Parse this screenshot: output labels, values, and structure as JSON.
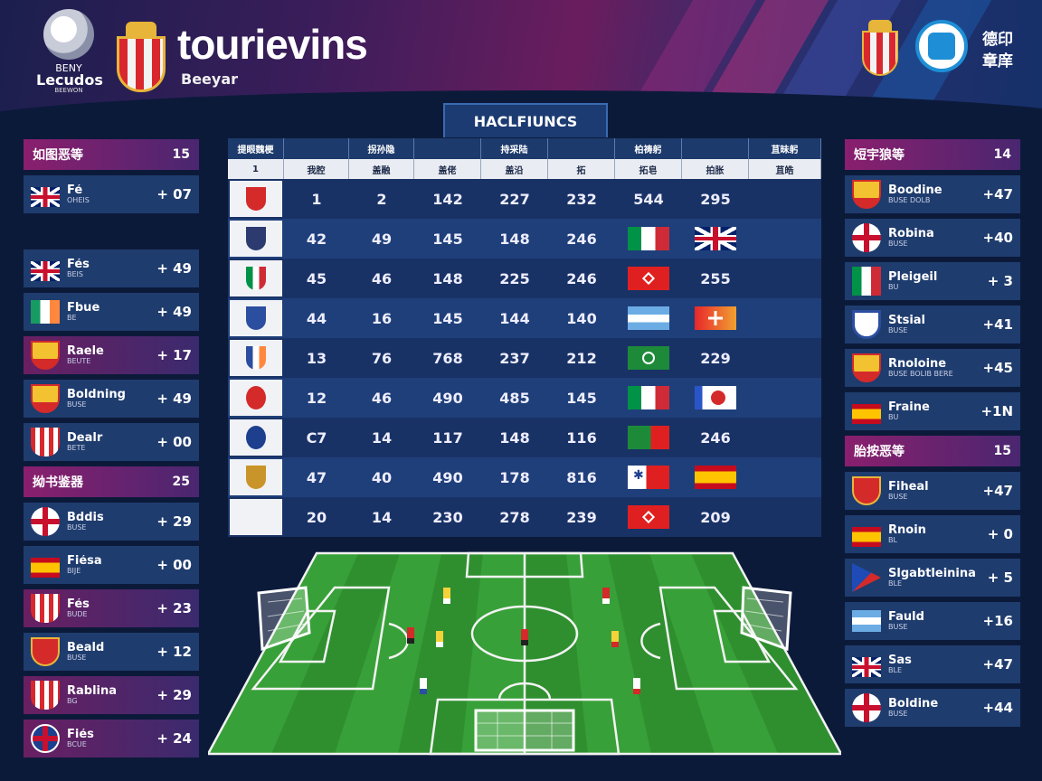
{
  "header": {
    "league_top": "BENY",
    "league_name": "Lecudos",
    "league_tag": "BEEWON",
    "title": "tourievins",
    "subtitle": "Beeyar",
    "right_line1": "德印",
    "right_line2": "章庠"
  },
  "table": {
    "title": "HACLFIUNCS",
    "headers": [
      "提眼魏梗",
      "",
      "拐孙隐",
      "",
      "持采陆",
      "",
      "柏祷躬",
      "",
      "苴昧躬"
    ],
    "subheaders": [
      "1",
      "我腔",
      "盖融",
      "盖佬",
      "盖沿",
      "拓",
      "拓皂",
      "拍胀",
      "苴皓"
    ],
    "rows": [
      {
        "logo": "shield-red-icon",
        "cells": [
          "1",
          "2",
          "142",
          "227",
          "232",
          "544",
          "295"
        ]
      },
      {
        "logo": "shield-blue-icon",
        "cells": [
          "42",
          "49",
          "145",
          "148",
          "246"
        ],
        "flag1": "f-it",
        "flag2": "f-uk"
      },
      {
        "logo": "italy-crest-icon",
        "cells": [
          "45",
          "46",
          "148",
          "225",
          "246"
        ],
        "flag1": "f-red",
        "last": "255"
      },
      {
        "logo": "cross-crest-icon",
        "cells": [
          "44",
          "16",
          "145",
          "144",
          "140"
        ],
        "flag1": "f-arg",
        "flag2": "f-swiss"
      },
      {
        "logo": "ireland-crest-icon",
        "cells": [
          "13",
          "76",
          "768",
          "237",
          "212"
        ],
        "flag1": "f-green",
        "last": "229"
      },
      {
        "logo": "round-red-icon",
        "cells": [
          "12",
          "46",
          "490",
          "485",
          "145"
        ],
        "flag1": "f-it",
        "flag2": "f-white-red"
      },
      {
        "logo": "star-crest-icon",
        "cells": [
          "C7",
          "14",
          "117",
          "148",
          "116"
        ],
        "flag1": "f-green-red",
        "last": "246"
      },
      {
        "logo": "gold-crest-icon",
        "cells": [
          "47",
          "40",
          "490",
          "178",
          "816"
        ],
        "flag1": "f-blue-red",
        "flag2": "f-es2"
      },
      {
        "logo": "",
        "cells": [
          "20",
          "14",
          "230",
          "278",
          "239"
        ],
        "flag1": "f-red",
        "last": "209"
      }
    ]
  },
  "left_groups": [
    {
      "title": "如图恶等",
      "count": "15",
      "teams": [
        {
          "name": "Fé",
          "sub": "OHEIS",
          "pts": "+ 07",
          "icon": "i-uk",
          "alt": false
        }
      ]
    },
    {
      "title": "",
      "count": "",
      "teams": [
        {
          "name": "Fés",
          "sub": "BEIS",
          "pts": "+ 49",
          "icon": "i-uk",
          "alt": false
        },
        {
          "name": "Fbue",
          "sub": "BE",
          "pts": "+ 49",
          "icon": "i-ie",
          "alt": false
        },
        {
          "name": "Raele",
          "sub": "BEUTE",
          "pts": "+ 17",
          "icon": "i-shield-gold",
          "alt": true
        },
        {
          "name": "Boldning",
          "sub": "BUSE",
          "pts": "+ 49",
          "icon": "i-shield-gold",
          "alt": false
        },
        {
          "name": "Dealr",
          "sub": "BETE",
          "pts": "+ 00",
          "icon": "i-stripe",
          "alt": false
        }
      ]
    },
    {
      "title": "拗书鉴器",
      "count": "25",
      "teams": [
        {
          "name": "Bddis",
          "sub": "BUSE",
          "pts": "+ 29",
          "icon": "i-round-cross",
          "alt": false
        },
        {
          "name": "Fiésa",
          "sub": "BIJE",
          "pts": "+ 00",
          "icon": "i-es",
          "alt": false
        },
        {
          "name": "Fés",
          "sub": "BUDE",
          "pts": "+ 23",
          "icon": "i-stripe",
          "alt": true
        },
        {
          "name": "Beald",
          "sub": "BUSE",
          "pts": "+ 12",
          "icon": "i-shield-red",
          "alt": false
        },
        {
          "name": "Rablina",
          "sub": "BG",
          "pts": "+ 29",
          "icon": "i-stripe",
          "alt": true
        },
        {
          "name": "Fiés",
          "sub": "BCUE",
          "pts": "+ 24",
          "icon": "i-round-blue",
          "alt": true
        }
      ]
    }
  ],
  "right_groups": [
    {
      "title": "短宇狼等",
      "count": "14",
      "teams": [
        {
          "name": "Boodine",
          "sub": "BUSE DOLB",
          "pts": "+47",
          "icon": "i-shield-gold",
          "alt": false
        },
        {
          "name": "Robina",
          "sub": "BUSE",
          "pts": "+40",
          "icon": "i-round-cross",
          "alt": false
        },
        {
          "name": "Pleigeil",
          "sub": "BU",
          "pts": "+  3",
          "icon": "i-it",
          "alt": false
        },
        {
          "name": "Stsial",
          "sub": "BUSE",
          "pts": "+41",
          "icon": "i-shield-blue",
          "alt": false
        },
        {
          "name": "Rnoloine",
          "sub": "BUSE BOLIB BERE",
          "pts": "+45",
          "icon": "i-shield-gold",
          "alt": false
        },
        {
          "name": "Fraine",
          "sub": "BU",
          "pts": "+1N",
          "icon": "i-es",
          "alt": false
        }
      ]
    },
    {
      "title": "胎按恶等",
      "count": "15",
      "teams": [
        {
          "name": "Fiheal",
          "sub": "BUSE",
          "pts": "+47",
          "icon": "i-shield-red",
          "alt": false
        },
        {
          "name": "Rnoin",
          "sub": "BL",
          "pts": "+  0",
          "icon": "i-es",
          "alt": false
        },
        {
          "name": "Slgabtleinina",
          "sub": "BLE",
          "pts": "+  5",
          "icon": "i-triangle",
          "alt": false
        },
        {
          "name": "Fauld",
          "sub": "BUSE",
          "pts": "+16",
          "icon": "i-arg",
          "alt": false
        },
        {
          "name": "Sas",
          "sub": "BLE",
          "pts": "+47",
          "icon": "i-uk",
          "alt": false
        },
        {
          "name": "Boldine",
          "sub": "BUSE",
          "pts": "+44",
          "icon": "i-round-cross",
          "alt": false
        }
      ]
    }
  ]
}
